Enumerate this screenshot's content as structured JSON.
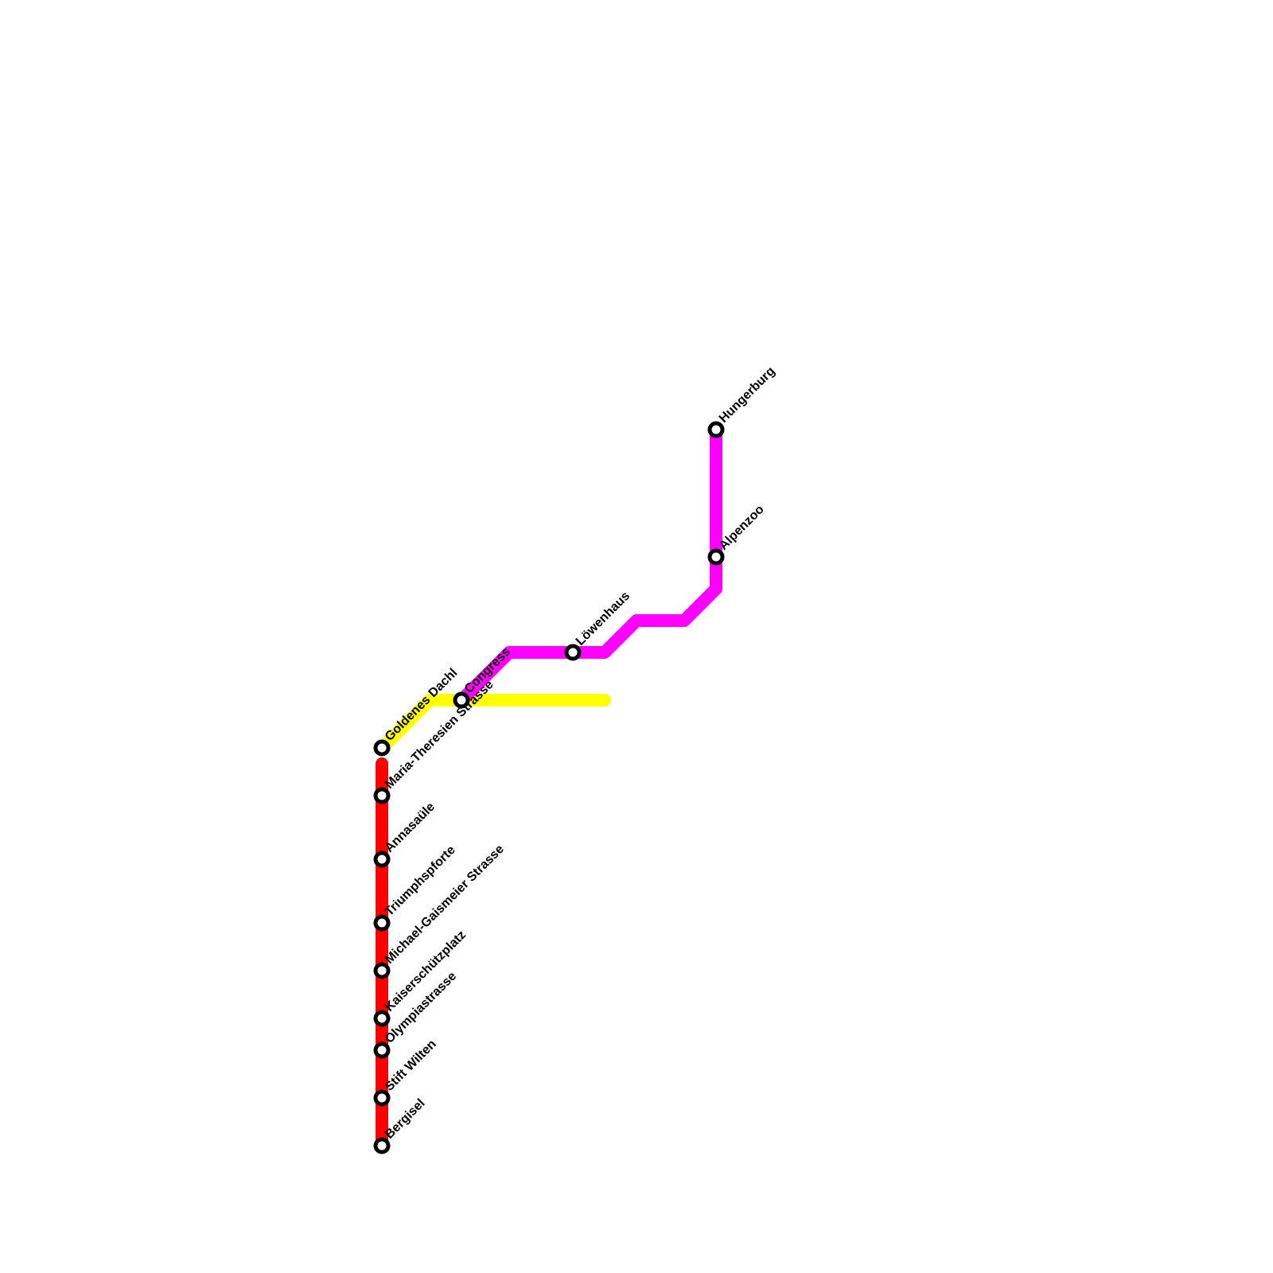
{
  "lines": [
    {
      "name": "red",
      "color": "#ff0000"
    },
    {
      "name": "yellow",
      "color": "#ffff00"
    },
    {
      "name": "magenta",
      "color": "#ff00ff"
    }
  ],
  "stations": [
    {
      "id": "hungerburg",
      "label": "Hungerburg"
    },
    {
      "id": "alpenzoo",
      "label": "Alpenzoo"
    },
    {
      "id": "loewenhaus",
      "label": "Löwenhaus"
    },
    {
      "id": "congress",
      "label": "Congress"
    },
    {
      "id": "maria-theresien-strasse",
      "label": "Maria-Theresien Strasse"
    },
    {
      "id": "goldenes-dachl",
      "label": "Goldenes Dachl"
    },
    {
      "id": "annasaeule",
      "label": "Annasaüle"
    },
    {
      "id": "triumphspforte",
      "label": "Triumphspforte"
    },
    {
      "id": "michael-gaismeier-strasse",
      "label": "Michael-Gaismeier Strasse"
    },
    {
      "id": "kaiserschuetzplatz",
      "label": "Kaiserschützplatz"
    },
    {
      "id": "olympiastrasse",
      "label": "Olympiastrasse"
    },
    {
      "id": "stift-wilten",
      "label": "Stift Wilten"
    },
    {
      "id": "bergisel",
      "label": "Bergisel"
    }
  ]
}
